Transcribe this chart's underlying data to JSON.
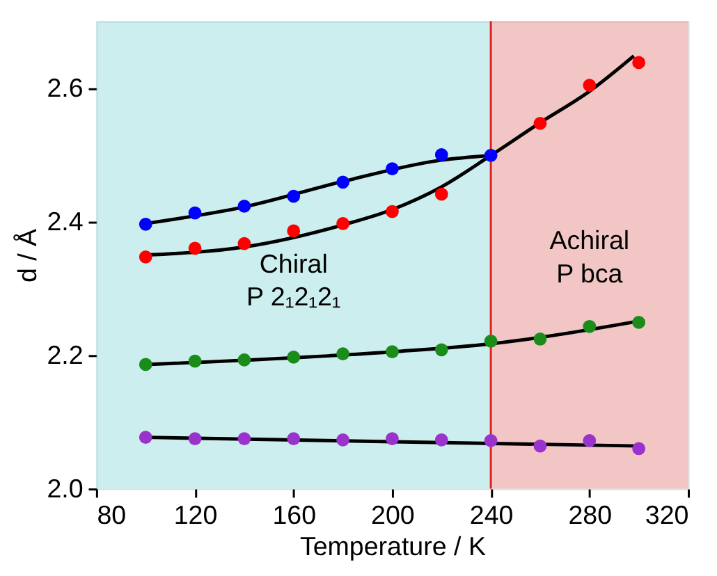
{
  "chart_data": {
    "type": "scatter",
    "xlabel": "Temperature / K",
    "ylabel": "d / Å",
    "xlim": [
      80,
      320
    ],
    "xticks": [
      80,
      120,
      160,
      200,
      240,
      280,
      320
    ],
    "ylim": [
      2.0,
      2.7
    ],
    "yticks": [
      {
        "value": 2.0,
        "label": "2.0"
      },
      {
        "value": 2.2,
        "label": "2.2"
      },
      {
        "value": 2.4,
        "label": "2.4"
      },
      {
        "value": 2.6,
        "label": "2.6"
      }
    ],
    "grid": false,
    "bands": [
      {
        "axis": "x",
        "from": 80,
        "to": 240,
        "label": "Chiral P 2₁2₁2₁",
        "color": "#8fdada"
      },
      {
        "axis": "x",
        "from": 240,
        "to": 320,
        "label": "Achiral P bca",
        "color": "#e58080"
      }
    ],
    "ref_lines": [
      {
        "axis": "x",
        "value": 240,
        "color": "#e02020"
      }
    ],
    "series": [
      {
        "type": "line",
        "marker": "none",
        "color": "#000000",
        "x": [
          100,
          140,
          180,
          220,
          240
        ],
        "values": [
          2.397,
          2.422,
          2.46,
          2.492,
          2.499
        ]
      },
      {
        "type": "line",
        "marker": "none",
        "color": "#000000",
        "x": [
          100,
          140,
          180,
          200,
          220,
          240,
          260,
          280,
          298
        ],
        "values": [
          2.35,
          2.362,
          2.395,
          2.418,
          2.452,
          2.499,
          2.548,
          2.595,
          2.648
        ]
      },
      {
        "type": "line",
        "marker": "none",
        "color": "#000000",
        "x": [
          100,
          200,
          240,
          300
        ],
        "values": [
          2.186,
          2.205,
          2.217,
          2.251
        ]
      },
      {
        "type": "line",
        "marker": "none",
        "color": "#000000",
        "x": [
          100,
          300
        ],
        "values": [
          2.077,
          2.064
        ]
      },
      {
        "marker": "circle",
        "color": "#ff0000",
        "x": [
          100,
          120,
          140,
          160,
          180,
          200,
          220,
          260,
          280,
          300
        ],
        "values": [
          2.347,
          2.36,
          2.367,
          2.386,
          2.397,
          2.415,
          2.441,
          2.547,
          2.604,
          2.638
        ]
      },
      {
        "marker": "circle",
        "color": "#0000ff",
        "x": [
          100,
          120,
          140,
          160,
          180,
          200,
          220,
          240
        ],
        "values": [
          2.396,
          2.413,
          2.423,
          2.438,
          2.459,
          2.479,
          2.5,
          2.499
        ]
      },
      {
        "marker": "circle",
        "color": "#1a8c1a",
        "x": [
          100,
          120,
          140,
          160,
          180,
          200,
          220,
          240,
          260,
          280,
          300
        ],
        "values": [
          2.186,
          2.191,
          2.193,
          2.197,
          2.202,
          2.205,
          2.208,
          2.221,
          2.224,
          2.243,
          2.249
        ]
      },
      {
        "marker": "circle",
        "color": "#9933cc",
        "x": [
          100,
          120,
          140,
          160,
          180,
          200,
          220,
          240,
          260,
          280,
          300
        ],
        "values": [
          2.077,
          2.075,
          2.075,
          2.075,
          2.073,
          2.075,
          2.073,
          2.072,
          2.064,
          2.072,
          2.06
        ]
      }
    ]
  }
}
